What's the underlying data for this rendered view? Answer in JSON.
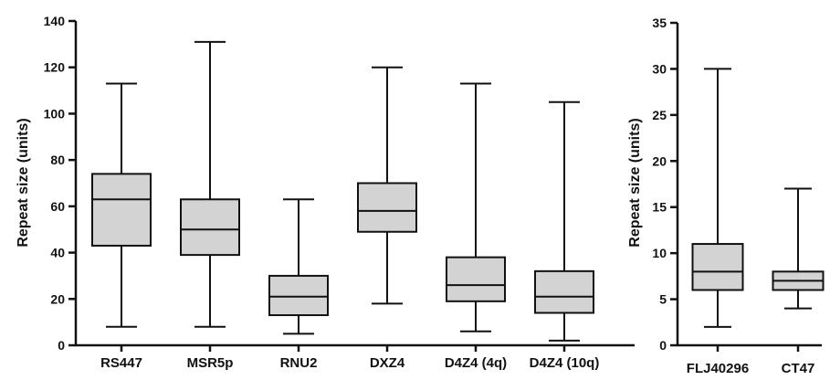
{
  "chart_data": [
    {
      "type": "box",
      "title": "",
      "xlabel": "",
      "ylabel": "Repeat size  (units)",
      "ylim": [
        0,
        140
      ],
      "yticks": [
        0,
        20,
        40,
        60,
        80,
        100,
        120,
        140
      ],
      "grid": false,
      "categories": [
        "RS447",
        "MSR5p",
        "RNU2",
        "DXZ4",
        "D4Z4 (4q)",
        "D4Z4 (10q)"
      ],
      "boxes": [
        {
          "min": 8,
          "q1": 43,
          "median": 63,
          "q3": 74,
          "max": 113
        },
        {
          "min": 8,
          "q1": 39,
          "median": 50,
          "q3": 63,
          "max": 131
        },
        {
          "min": 5,
          "q1": 13,
          "median": 21,
          "q3": 30,
          "max": 63
        },
        {
          "min": 18,
          "q1": 49,
          "median": 58,
          "q3": 70,
          "max": 120
        },
        {
          "min": 6,
          "q1": 19,
          "median": 26,
          "q3": 38,
          "max": 113
        },
        {
          "min": 2,
          "q1": 14,
          "median": 21,
          "q3": 32,
          "max": 105
        }
      ],
      "box_color": "#d3d3d3"
    },
    {
      "type": "box",
      "title": "",
      "xlabel": "",
      "ylabel": "Repeat size (units)",
      "ylim": [
        0,
        35
      ],
      "yticks": [
        0,
        5,
        10,
        15,
        20,
        25,
        30,
        35
      ],
      "grid": false,
      "categories": [
        "FLJ40296",
        "CT47"
      ],
      "boxes": [
        {
          "min": 2,
          "q1": 6,
          "median": 8,
          "q3": 11,
          "max": 30
        },
        {
          "min": 4,
          "q1": 6,
          "median": 7,
          "q3": 8,
          "max": 17
        }
      ],
      "box_color": "#d3d3d3"
    }
  ]
}
